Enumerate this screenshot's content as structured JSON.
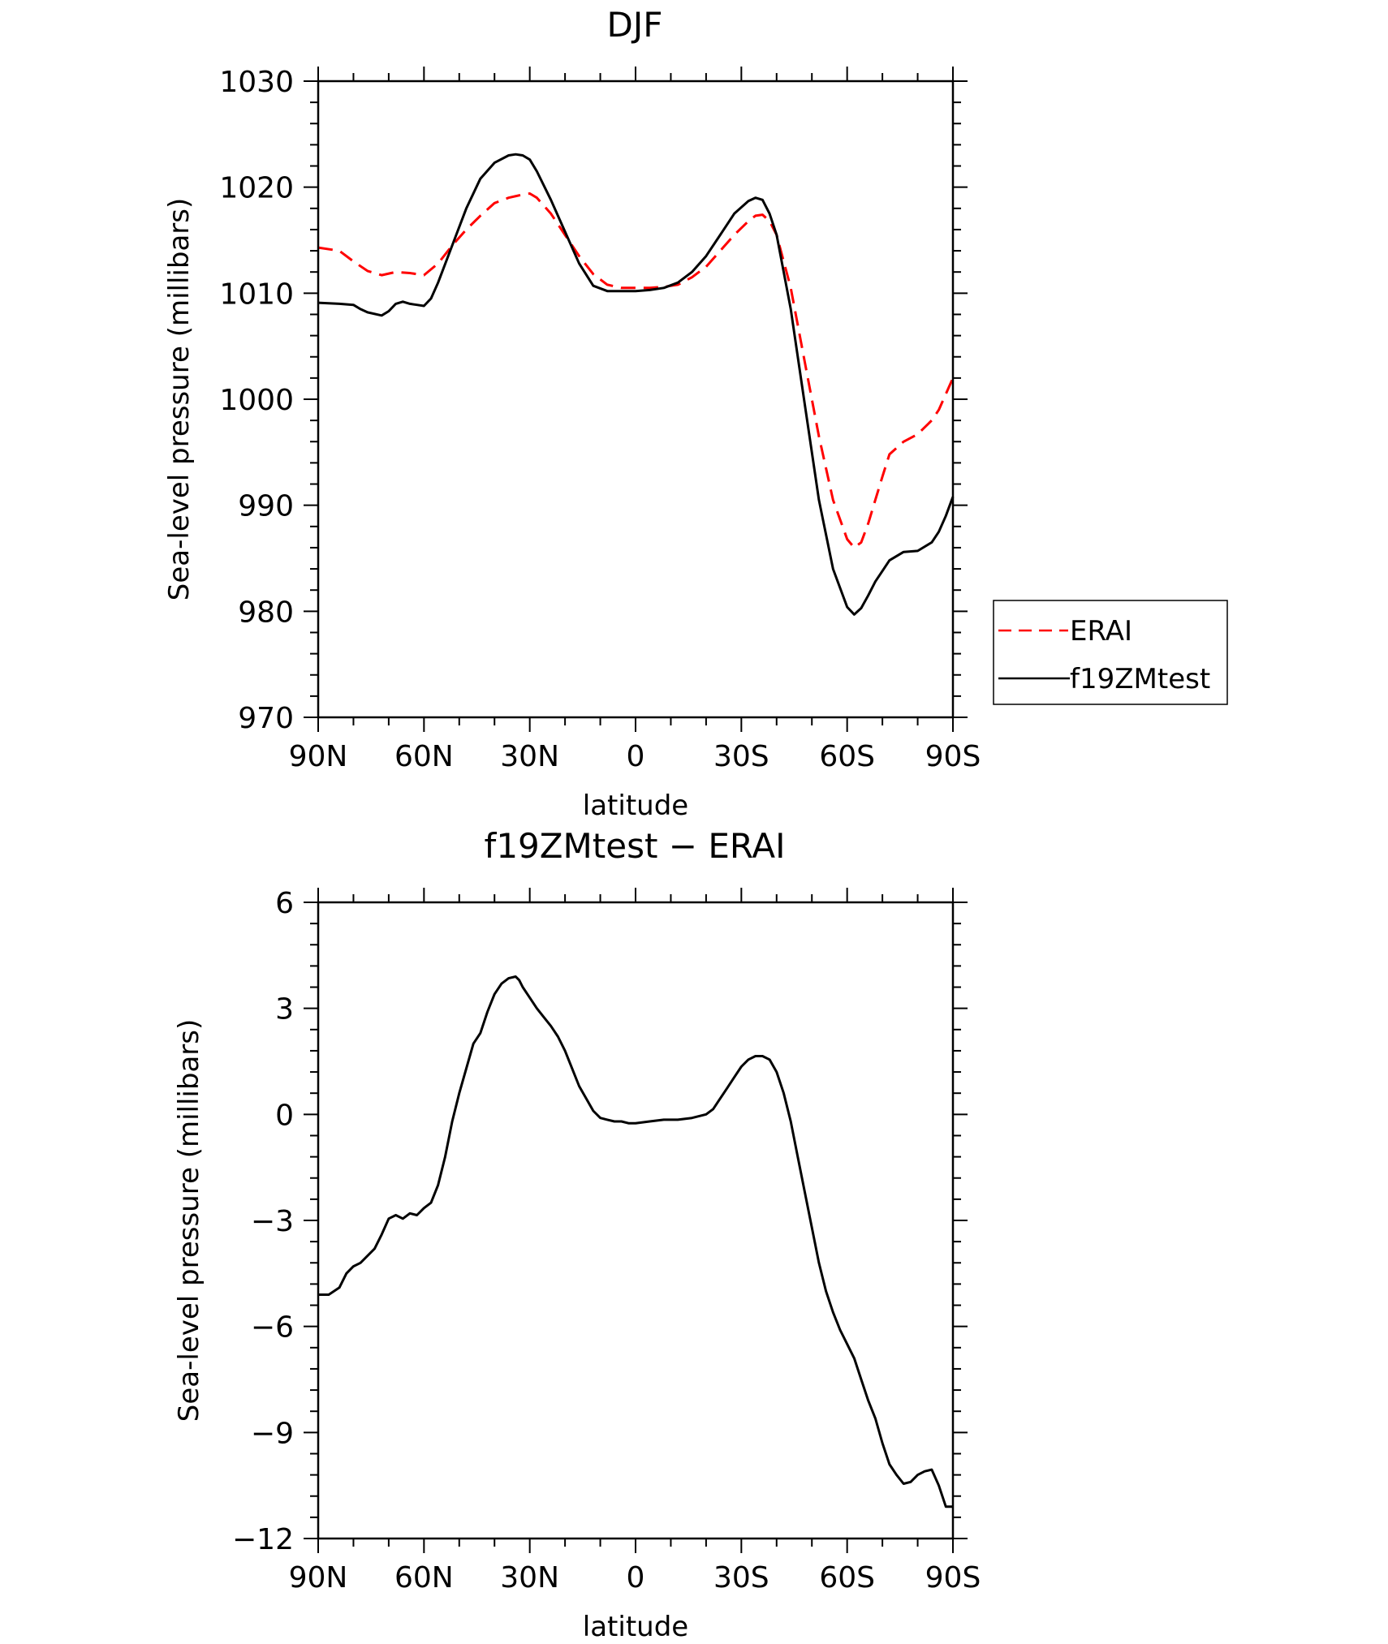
{
  "chart_data": [
    {
      "type": "line",
      "title": "DJF",
      "xlabel": "latitude",
      "ylabel": "Sea-level pressure (millibars)",
      "xlim": [
        90,
        -90
      ],
      "ylim": [
        970,
        1030
      ],
      "xticks": [
        90,
        60,
        30,
        0,
        -30,
        -60,
        -90
      ],
      "xtick_labels": [
        "90N",
        "60N",
        "30N",
        "0",
        "30S",
        "60S",
        "90S"
      ],
      "yticks": [
        970,
        980,
        990,
        1000,
        1010,
        1020,
        1030
      ],
      "ytick_labels": [
        "970",
        "980",
        "990",
        "1000",
        "1010",
        "1020",
        "1030"
      ],
      "legend_position": "right",
      "series": [
        {
          "name": "ERAI",
          "color": "#ff0000",
          "dash": "dashed",
          "x": [
            90,
            84,
            80,
            76,
            72,
            68,
            64,
            60,
            56,
            52,
            48,
            44,
            40,
            36,
            32,
            30,
            28,
            24,
            20,
            16,
            12,
            8,
            4,
            0,
            -4,
            -8,
            -12,
            -16,
            -20,
            -24,
            -28,
            -32,
            -34,
            -36,
            -38,
            -40,
            -44,
            -48,
            -52,
            -56,
            -60,
            -62,
            -64,
            -66,
            -68,
            -70,
            -72,
            -76,
            -80,
            -84,
            -86,
            -88,
            -90
          ],
          "y": [
            1014.3,
            1014.0,
            1013.0,
            1012.1,
            1011.7,
            1012.0,
            1011.9,
            1011.7,
            1012.8,
            1014.5,
            1016.0,
            1017.3,
            1018.5,
            1019.0,
            1019.3,
            1019.4,
            1019.0,
            1017.5,
            1015.5,
            1013.5,
            1011.8,
            1010.8,
            1010.5,
            1010.5,
            1010.5,
            1010.6,
            1010.8,
            1011.5,
            1012.5,
            1014.0,
            1015.5,
            1016.8,
            1017.3,
            1017.4,
            1016.8,
            1015.5,
            1010.5,
            1003.5,
            996.5,
            990.5,
            986.8,
            986.0,
            986.5,
            988.3,
            990.5,
            992.7,
            994.8,
            996.0,
            996.7,
            998.0,
            999.0,
            1000.5,
            1002.0
          ]
        },
        {
          "name": "f19ZMtest",
          "color": "#000000",
          "dash": "solid",
          "x": [
            90,
            84,
            80,
            78,
            76,
            72,
            70,
            68,
            66,
            64,
            62,
            60,
            58,
            56,
            52,
            48,
            44,
            40,
            36,
            34,
            32,
            30,
            28,
            24,
            20,
            16,
            12,
            8,
            4,
            0,
            -4,
            -8,
            -12,
            -16,
            -20,
            -24,
            -28,
            -32,
            -34,
            -36,
            -38,
            -40,
            -44,
            -48,
            -52,
            -56,
            -60,
            -62,
            -64,
            -66,
            -68,
            -70,
            -72,
            -76,
            -80,
            -84,
            -86,
            -88,
            -90
          ],
          "y": [
            1009.1,
            1009.0,
            1008.9,
            1008.5,
            1008.2,
            1007.9,
            1008.3,
            1009.0,
            1009.2,
            1009.0,
            1008.9,
            1008.8,
            1009.5,
            1011.0,
            1014.5,
            1018.0,
            1020.8,
            1022.3,
            1023.0,
            1023.1,
            1023.0,
            1022.6,
            1021.5,
            1018.8,
            1015.8,
            1012.8,
            1010.7,
            1010.2,
            1010.2,
            1010.2,
            1010.3,
            1010.5,
            1011.0,
            1012.0,
            1013.5,
            1015.5,
            1017.5,
            1018.7,
            1019.0,
            1018.8,
            1017.5,
            1015.5,
            1008.5,
            999.5,
            990.5,
            984.0,
            980.4,
            979.7,
            980.3,
            981.5,
            982.8,
            983.8,
            984.8,
            985.6,
            985.7,
            986.5,
            987.5,
            989.0,
            990.8
          ]
        }
      ]
    },
    {
      "type": "line",
      "title": "f19ZMtest − ERAI",
      "xlabel": "latitude",
      "ylabel": "Sea-level pressure (millibars)",
      "xlim": [
        90,
        -90
      ],
      "ylim": [
        -12,
        6
      ],
      "xticks": [
        90,
        60,
        30,
        0,
        -30,
        -60,
        -90
      ],
      "xtick_labels": [
        "90N",
        "60N",
        "30N",
        "0",
        "30S",
        "60S",
        "90S"
      ],
      "yticks": [
        -12,
        -9,
        -6,
        -3,
        0,
        3,
        6
      ],
      "ytick_labels": [
        "−12",
        "−9",
        "−6",
        "−3",
        "0",
        "3",
        "6"
      ],
      "series": [
        {
          "color": "#000000",
          "dash": "solid",
          "x": [
            90,
            87,
            84,
            82,
            80,
            78,
            76,
            74,
            72,
            70,
            68,
            66,
            64,
            62,
            60,
            58,
            56,
            54,
            52,
            50,
            48,
            46,
            44,
            42,
            40,
            38,
            36,
            34,
            33,
            32,
            30,
            28,
            26,
            24,
            22,
            20,
            18,
            16,
            14,
            12,
            10,
            8,
            6,
            4,
            2,
            0,
            -4,
            -8,
            -12,
            -16,
            -20,
            -22,
            -24,
            -26,
            -28,
            -30,
            -32,
            -34,
            -36,
            -38,
            -40,
            -42,
            -44,
            -46,
            -48,
            -50,
            -52,
            -54,
            -56,
            -58,
            -60,
            -62,
            -64,
            -66,
            -68,
            -70,
            -72,
            -74,
            -76,
            -78,
            -80,
            -82,
            -84,
            -86,
            -88,
            -90
          ],
          "y": [
            -5.1,
            -5.1,
            -4.9,
            -4.5,
            -4.3,
            -4.2,
            -4.0,
            -3.8,
            -3.4,
            -2.95,
            -2.85,
            -2.95,
            -2.8,
            -2.85,
            -2.65,
            -2.5,
            -2.0,
            -1.2,
            -0.2,
            0.6,
            1.3,
            2.0,
            2.3,
            2.9,
            3.4,
            3.7,
            3.85,
            3.9,
            3.8,
            3.6,
            3.3,
            3.0,
            2.75,
            2.5,
            2.2,
            1.8,
            1.3,
            0.8,
            0.45,
            0.1,
            -0.1,
            -0.15,
            -0.2,
            -0.2,
            -0.25,
            -0.25,
            -0.2,
            -0.15,
            -0.15,
            -0.1,
            0.0,
            0.15,
            0.45,
            0.75,
            1.05,
            1.35,
            1.55,
            1.65,
            1.65,
            1.55,
            1.2,
            0.6,
            -0.2,
            -1.2,
            -2.2,
            -3.2,
            -4.2,
            -5.0,
            -5.6,
            -6.1,
            -6.5,
            -6.9,
            -7.5,
            -8.1,
            -8.6,
            -9.3,
            -9.9,
            -10.2,
            -10.45,
            -10.4,
            -10.2,
            -10.1,
            -10.05,
            -10.5,
            -11.1,
            -11.1
          ]
        }
      ]
    }
  ],
  "legend": {
    "entries": [
      {
        "label": "ERAI",
        "color": "#ff0000",
        "dash": "dashed"
      },
      {
        "label": "f19ZMtest",
        "color": "#000000",
        "dash": "solid"
      }
    ]
  }
}
